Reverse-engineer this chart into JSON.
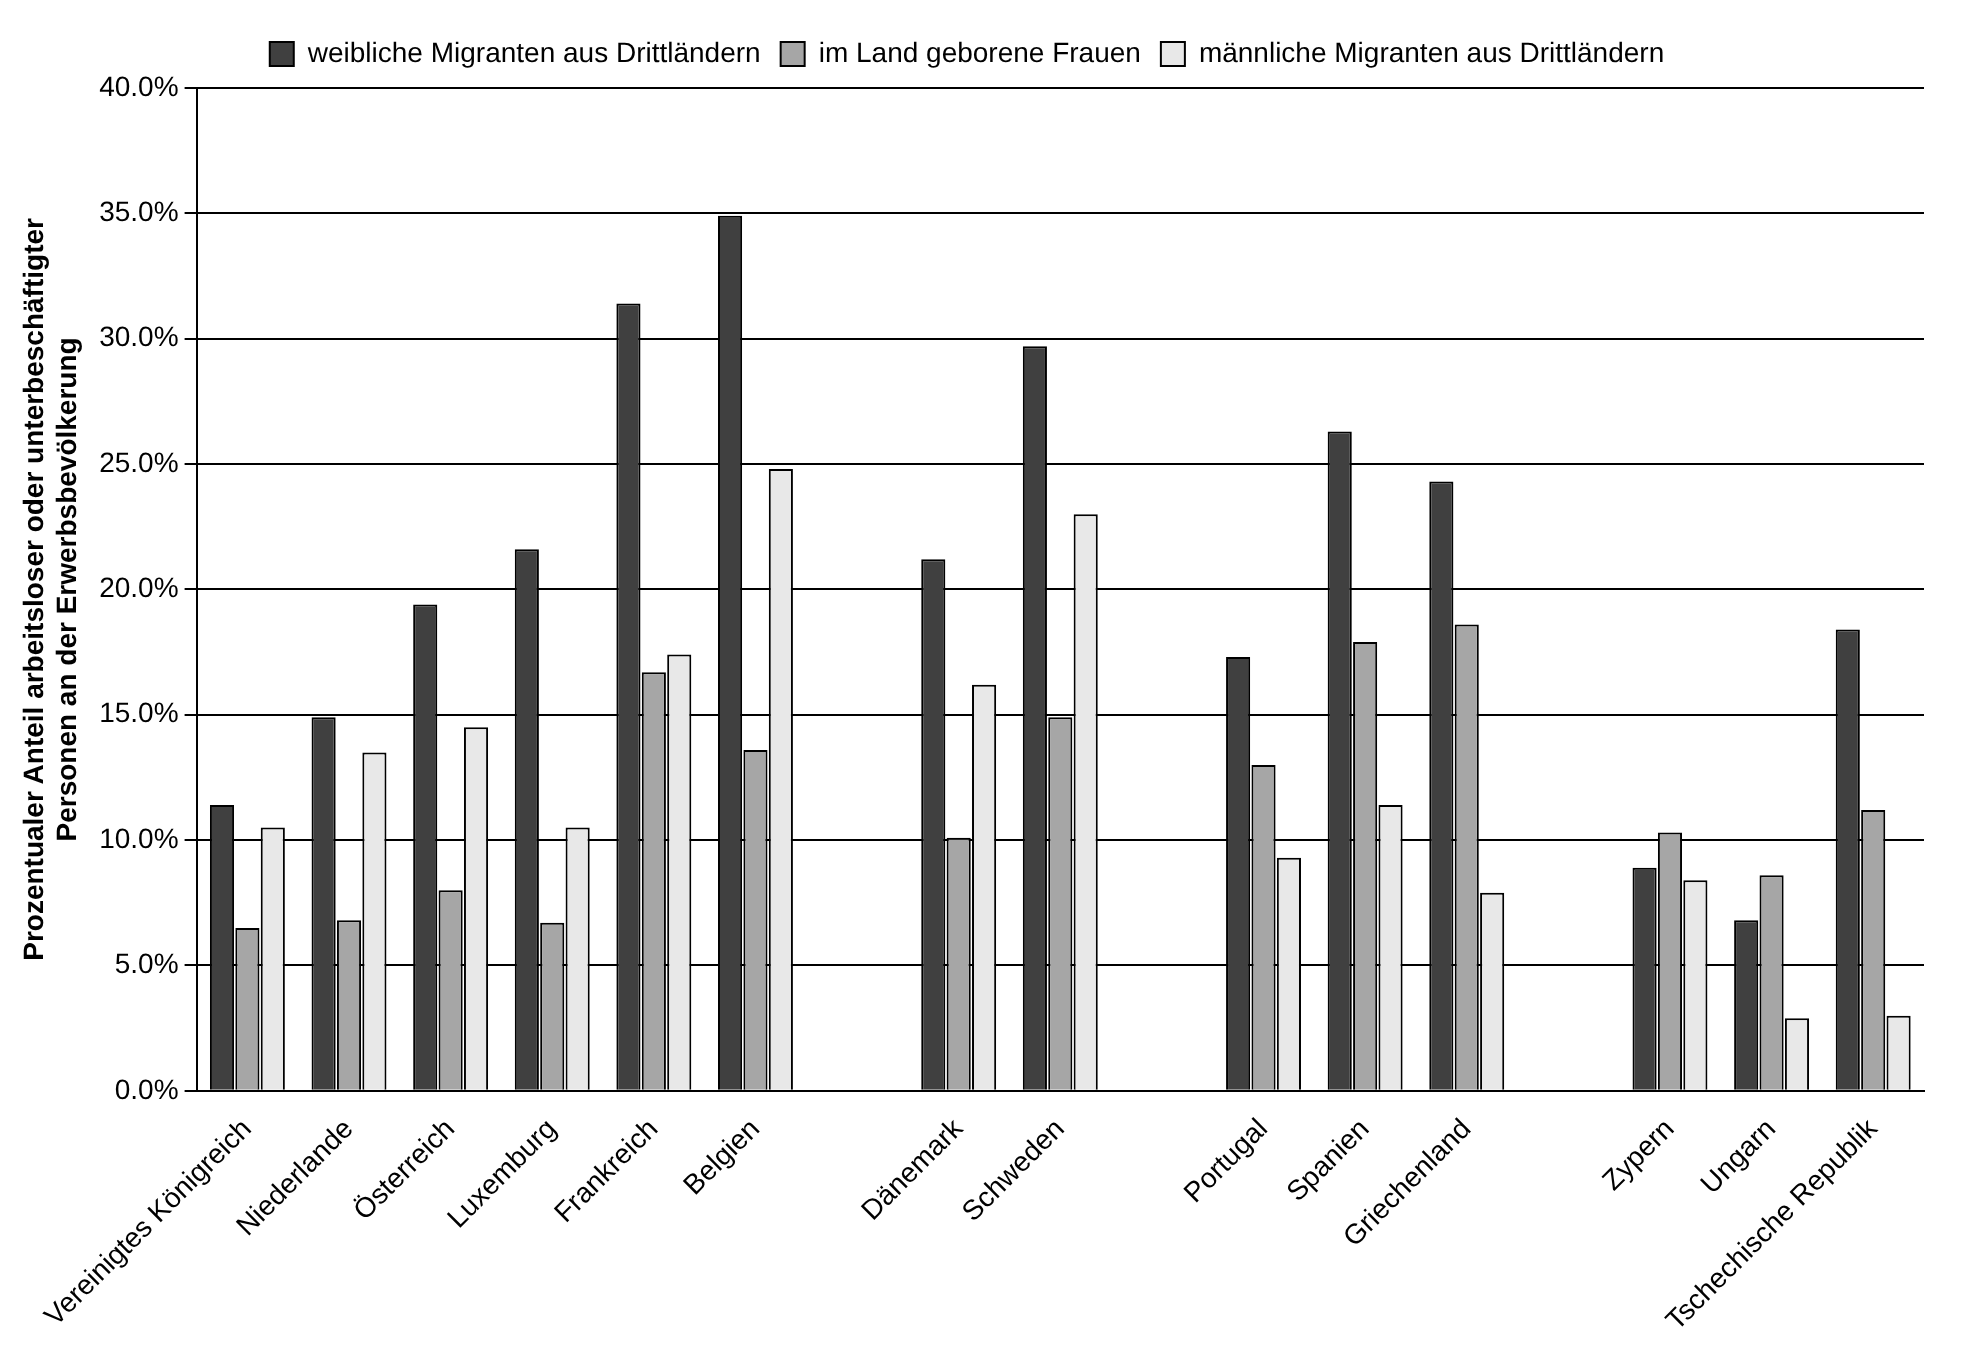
{
  "chart_data": {
    "type": "bar",
    "ylabel": "Prozentualer Anteil arbeitsloser oder unterbeschäftigter\nPersonen an der Erwerbsbevölkerung",
    "categories": [
      "Vereinigtes Königreich",
      "Niederlande",
      "Österreich",
      "Luxemburg",
      "Frankreich",
      "Belgien",
      null,
      "Dänemark",
      "Schweden",
      null,
      "Portugal",
      "Spanien",
      "Griechenland",
      null,
      "Zypern",
      "Ungarn",
      "Tschechische Republik"
    ],
    "series": [
      {
        "name": "weibliche Migranten aus Drittländern",
        "color": "#404040",
        "values": [
          11.4,
          14.9,
          19.4,
          21.6,
          31.4,
          34.9,
          null,
          21.2,
          29.7,
          null,
          17.3,
          26.3,
          24.3,
          null,
          8.9,
          6.8,
          18.4
        ]
      },
      {
        "name": "im Land geborene Frauen",
        "color": "#a6a6a6",
        "values": [
          6.5,
          6.8,
          8.0,
          6.7,
          16.7,
          13.6,
          null,
          10.1,
          14.9,
          null,
          13.0,
          17.9,
          18.6,
          null,
          10.3,
          8.6,
          11.2
        ]
      },
      {
        "name": "männliche Migranten aus Drittländern",
        "color": "#e8e8e8",
        "values": [
          10.5,
          13.5,
          14.5,
          10.5,
          17.4,
          24.8,
          null,
          16.2,
          23.0,
          null,
          9.3,
          11.4,
          7.9,
          null,
          8.4,
          2.9,
          3.0
        ]
      }
    ],
    "ylim": [
      0,
      40
    ],
    "yticks": [
      {
        "value": 0,
        "label": "0.0%"
      },
      {
        "value": 5,
        "label": "5.0%"
      },
      {
        "value": 10,
        "label": "10.0%"
      },
      {
        "value": 15,
        "label": "15.0%"
      },
      {
        "value": 20,
        "label": "20.0%"
      },
      {
        "value": 25,
        "label": "25.0%"
      },
      {
        "value": 30,
        "label": "30.0%"
      },
      {
        "value": 35,
        "label": "35.0%"
      },
      {
        "value": 40,
        "label": "40.0%"
      }
    ],
    "grid": "y",
    "legend": "top"
  }
}
